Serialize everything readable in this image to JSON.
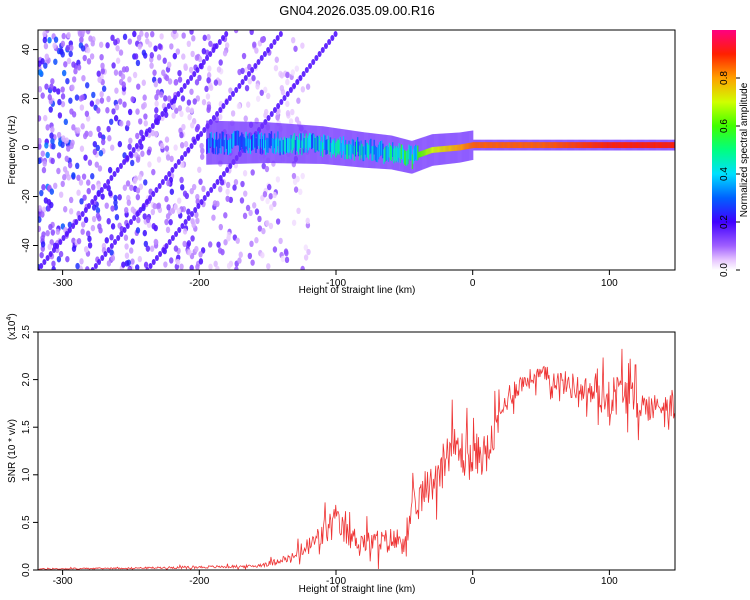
{
  "title": "GN04.2026.035.09.00.R16",
  "chart_data": [
    {
      "type": "heatmap",
      "name": "spectrogram",
      "xlabel": "Height of straight line (km)",
      "ylabel": "Frequency (Hz)",
      "xlim": [
        -318,
        148
      ],
      "ylim": [
        -50,
        48
      ],
      "xticks": [
        -300,
        -200,
        -100,
        0,
        100
      ],
      "yticks": [
        -40,
        -20,
        0,
        20,
        40
      ],
      "colorbar": {
        "label": "Normalized spectral amplitude",
        "range": [
          0.0,
          1.0
        ],
        "ticks": [
          0.0,
          0.2,
          0.4,
          0.6,
          0.8
        ]
      },
      "features": {
        "noise_region_x": [
          -318,
          -140
        ],
        "signal_trace": [
          {
            "x": -195,
            "freq": 2,
            "amp": 0.35
          },
          {
            "x": -150,
            "freq": 2,
            "amp": 0.4
          },
          {
            "x": -110,
            "freq": 1,
            "amp": 0.45
          },
          {
            "x": -80,
            "freq": -1,
            "amp": 0.45
          },
          {
            "x": -60,
            "freq": -2,
            "amp": 0.5
          },
          {
            "x": -45,
            "freq": -4,
            "amp": 0.55
          },
          {
            "x": -30,
            "freq": -1,
            "amp": 0.7
          },
          {
            "x": -10,
            "freq": 0,
            "amp": 0.8
          },
          {
            "x": 0,
            "freq": 1,
            "amp": 0.85
          },
          {
            "x": 50,
            "freq": 1,
            "amp": 0.85
          },
          {
            "x": 100,
            "freq": 1,
            "amp": 0.9
          },
          {
            "x": 148,
            "freq": 1,
            "amp": 0.9
          }
        ]
      }
    },
    {
      "type": "line",
      "name": "snr",
      "xlabel": "Height of straight line (km)",
      "ylabel": "SNR (10 * v/v)",
      "ylabel_multiplier": "(x10",
      "ylabel_exponent": "4",
      "xlim": [
        -318,
        148
      ],
      "ylim": [
        0,
        2.5
      ],
      "xticks": [
        -300,
        -200,
        -100,
        0,
        100
      ],
      "yticks": [
        0.0,
        0.5,
        1.0,
        1.5,
        2.0,
        2.5
      ],
      "ytick_labels": [
        "0.0",
        "0.5",
        "1.0",
        "1.5",
        "2.0",
        "2.5"
      ],
      "series": [
        {
          "name": "SNR",
          "color": "#ee3333",
          "x": [
            -318,
            -250,
            -200,
            -160,
            -145,
            -140,
            -135,
            -125,
            -115,
            -105,
            -100,
            -95,
            -90,
            -80,
            -70,
            -60,
            -55,
            -50,
            -45,
            -40,
            -35,
            -30,
            -25,
            -20,
            -15,
            -10,
            -5,
            0,
            5,
            10,
            15,
            20,
            25,
            30,
            35,
            40,
            50,
            60,
            70,
            80,
            90,
            100,
            110,
            120,
            130,
            140,
            148
          ],
          "values": [
            0.01,
            0.02,
            0.03,
            0.04,
            0.08,
            0.12,
            0.1,
            0.2,
            0.3,
            0.45,
            0.5,
            0.42,
            0.35,
            0.3,
            0.28,
            0.32,
            0.3,
            0.35,
            0.5,
            0.7,
            0.85,
            0.9,
            1.05,
            1.2,
            1.3,
            1.25,
            1.2,
            1.15,
            1.25,
            1.2,
            1.4,
            1.6,
            1.8,
            1.9,
            1.95,
            2.0,
            2.05,
            2.0,
            1.95,
            1.9,
            1.85,
            1.8,
            1.9,
            1.75,
            1.7,
            1.75,
            1.7
          ],
          "noise_amplitude": [
            0.01,
            0.01,
            0.02,
            0.02,
            0.05,
            0.06,
            0.06,
            0.12,
            0.18,
            0.25,
            0.28,
            0.2,
            0.18,
            0.18,
            0.18,
            0.18,
            0.22,
            0.25,
            0.3,
            0.3,
            0.28,
            0.3,
            0.3,
            0.3,
            0.32,
            0.35,
            0.38,
            0.3,
            0.35,
            0.32,
            0.28,
            0.25,
            0.2,
            0.18,
            0.16,
            0.15,
            0.15,
            0.15,
            0.2,
            0.2,
            0.25,
            0.3,
            0.35,
            0.25,
            0.2,
            0.2,
            0.2
          ]
        }
      ]
    }
  ]
}
